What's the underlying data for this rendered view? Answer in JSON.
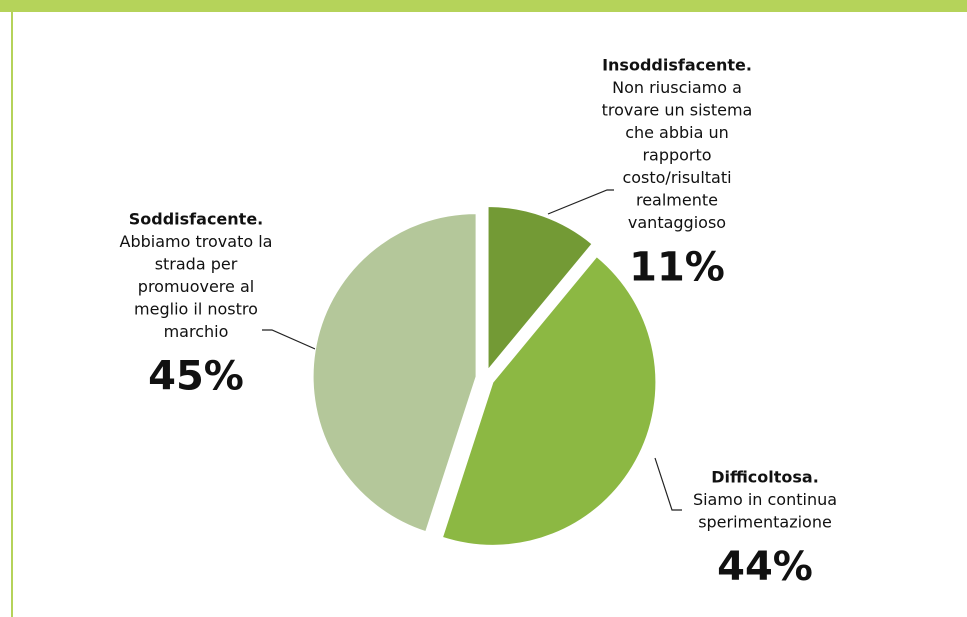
{
  "chart_data": {
    "type": "pie",
    "categories": [
      "Insoddisfacente.",
      "Difficoltosa.",
      "Soddisfacente."
    ],
    "descriptions": [
      [
        "Non riusciamo a",
        "trovare un sistema",
        "che abbia un",
        "rapporto",
        "costo/risultati",
        "realmente",
        "vantaggioso"
      ],
      [
        "Siamo in continua",
        "sperimentazione"
      ],
      [
        "Abbiamo trovato la",
        "strada per",
        "promuovere al",
        "meglio il nostro",
        "marchio"
      ]
    ],
    "values": [
      11,
      44,
      45
    ],
    "value_labels": [
      "11%",
      "44%",
      "45%"
    ],
    "colors": [
      "#739a35",
      "#8cb843",
      "#b4c79a"
    ]
  }
}
